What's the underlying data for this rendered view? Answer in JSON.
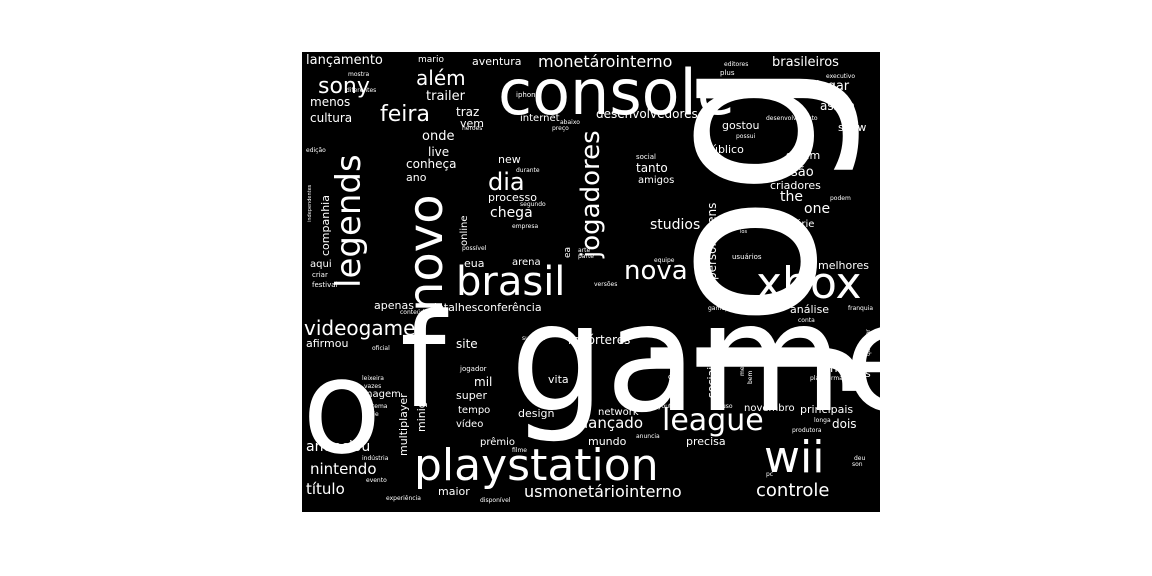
{
  "words": {
    "jogo": "jogo",
    "game": "game",
    "o": "o",
    "f": "f",
    "console": "console",
    "playstation": "playstation",
    "wii": "wii",
    "xbox": "xbox",
    "brasil": "brasil",
    "novo": "novo",
    "legends": "legends",
    "league": "league",
    "jogadores": "jogadores",
    "nova": "nova",
    "dia": "dia",
    "feira": "feira",
    "sony": "sony",
    "alem": "além",
    "videogame": "videogame",
    "usmonetario": "usmonetáriointerno",
    "controle": "controle",
    "monetario": "monetárointerno",
    "lancamento": "lançamento",
    "mario": "mario",
    "aventura": "aventura",
    "brasileiros": "brasileiros",
    "jogar": "jogar",
    "assim": "assim",
    "menos": "menos",
    "cultura": "cultura",
    "trailer": "trailer",
    "traz": "traz",
    "vem": "vem",
    "onde": "onde",
    "live": "live",
    "conheca": "conheça",
    "ano": "ano",
    "new": "new",
    "processo": "processo",
    "chega": "chega",
    "online": "online",
    "tanto": "tanto",
    "amigos": "amigos",
    "versao": "versão",
    "the": "the",
    "one": "one",
    "steam": "steam",
    "criadores": "criadores",
    "serie": "série",
    "studios": "studios",
    "personagens": "personagens",
    "publico": "público",
    "desenvolvedores": "desenvolvedores",
    "gostou": "gostou",
    "show": "show",
    "internet": "internet",
    "companhia": "companhia",
    "aqui": "aqui",
    "eua": "eua",
    "arena": "arena",
    "melhores": "melhores",
    "apenas": "apenas",
    "detalhes": "detalhesconferência",
    "analise": "análise",
    "site": "site",
    "afirmou": "afirmou",
    "reporteres": "repórteres",
    "horas": "horas",
    "ds": "ds",
    "mil": "mil",
    "super": "super",
    "vita": "vita",
    "multiplayer": "multiplayer",
    "minigames": "minigames",
    "tempo": "tempo",
    "design": "design",
    "network": "network",
    "tv": "tv",
    "sociais": "sociais",
    "novembro": "novembro",
    "principais": "principais",
    "dois": "dois",
    "lancado": "lançado",
    "video": "vídeo",
    "anunciou": "anunciou",
    "premio": "prêmio",
    "mundo": "mundo",
    "precisa": "precisa",
    "nintendo": "nintendo",
    "titulo": "título",
    "maior": "maior",
    "imagem": "imagem",
    "edicao": "edição",
    "independentes": "independentes",
    "criar": "criar",
    "festival": "festival",
    "oficial": "oficial",
    "conteudo": "conteúdo",
    "heroes": "heroes",
    "preco": "preço",
    "abaixo": "abaixo",
    "iphone": "iphone",
    "in": "in",
    "plus": "plus",
    "editores": "editores",
    "executivo": "executivo",
    "desenvolvimento": "desenvolvimento",
    "possui": "possui",
    "mostra": "mostra",
    "diferentes": "diferentes",
    "social": "social",
    "durante": "durante",
    "segundo": "segundo",
    "empresa": "empresa",
    "caso": "caso",
    "podem": "podem",
    "possivel": "possível",
    "arte": "arte",
    "parte": "parte",
    "ea": "ea",
    "equipe": "equipe",
    "usuarios": "usuários",
    "versoes": "versões",
    "gamepad": "gamepad",
    "franquia": "franquia",
    "conta": "conta",
    "sucesso": "sucesso",
    "mercado": "mercado",
    "bem": "bem",
    "plataforma": "plataforma",
    "qualquer": "qualquer",
    "jogador": "jogador",
    "city": "city",
    "youtube": "youtube",
    "uso": "uso",
    "longa": "longa",
    "produtora": "produtora",
    "sistema": "sistema",
    "vazes": "vazes",
    "indie": "indie",
    "industria": "indústria",
    "filme": "filme",
    "anuncia": "anuncia",
    "pc": "pc",
    "evento": "evento",
    "experiencia": "experiência",
    "disponivel": "disponível",
    "deu": "deu",
    "son": "son",
    "leixeira": "leixeira",
    "ios": "ios"
  },
  "colors": {
    "background": "#000000",
    "text": "#ffffff",
    "page": "#ffffff"
  }
}
